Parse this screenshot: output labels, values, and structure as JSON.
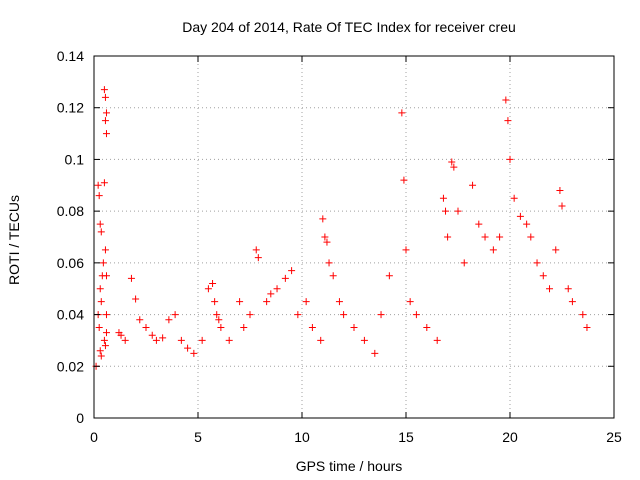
{
  "chart_data": {
    "type": "scatter",
    "title": "Day 204 of 2014, Rate Of TEC Index for receiver creu",
    "xlabel": "GPS time / hours",
    "ylabel": "ROTI / TECUs",
    "xlim": [
      0,
      25
    ],
    "ylim": [
      0,
      0.14
    ],
    "xticks": [
      0,
      5,
      10,
      15,
      20,
      25
    ],
    "yticks": [
      0,
      0.02,
      0.04,
      0.06,
      0.08,
      0.1,
      0.12,
      0.14
    ],
    "xtick_labels": [
      "0",
      "5",
      "10",
      "15",
      "20",
      "25"
    ],
    "ytick_labels": [
      "0",
      "0.02",
      "0.04",
      "0.06",
      "0.08",
      "0.1",
      "0.12",
      "0.14"
    ],
    "grid": true,
    "marker": "plus",
    "color": "#ff0000",
    "series": [
      {
        "name": "ROTI",
        "x": [
          0.1,
          0.2,
          0.25,
          0.3,
          0.35,
          0.4,
          0.45,
          0.5,
          0.55,
          0.6,
          0.2,
          0.25,
          0.55,
          0.6,
          0.5,
          0.55,
          0.6,
          0.3,
          0.35,
          0.6,
          0.5,
          0.55,
          0.6,
          0.3,
          0.35,
          1.2,
          1.3,
          1.5,
          1.8,
          2.0,
          2.2,
          2.5,
          2.8,
          3.0,
          3.3,
          3.6,
          3.9,
          4.2,
          4.5,
          4.8,
          5.2,
          5.5,
          5.7,
          5.8,
          5.9,
          6.0,
          6.1,
          6.5,
          7.0,
          7.2,
          7.5,
          7.8,
          7.9,
          8.3,
          8.5,
          8.8,
          9.2,
          9.5,
          9.8,
          10.2,
          10.5,
          10.9,
          11.0,
          11.1,
          11.2,
          11.3,
          11.5,
          11.8,
          12.0,
          12.5,
          13.0,
          13.5,
          13.8,
          14.2,
          14.8,
          14.9,
          15.0,
          15.2,
          15.5,
          16.0,
          16.5,
          16.8,
          16.9,
          17.0,
          17.2,
          17.3,
          17.5,
          17.8,
          18.2,
          18.5,
          18.8,
          19.2,
          19.5,
          19.8,
          19.9,
          20.0,
          20.2,
          20.5,
          20.8,
          21.0,
          21.3,
          21.6,
          21.9,
          22.2,
          22.4,
          22.5,
          22.8,
          23.0,
          23.5,
          23.7
        ],
        "y": [
          0.02,
          0.09,
          0.086,
          0.075,
          0.072,
          0.055,
          0.06,
          0.127,
          0.124,
          0.118,
          0.04,
          0.035,
          0.115,
          0.11,
          0.091,
          0.065,
          0.055,
          0.05,
          0.045,
          0.04,
          0.03,
          0.028,
          0.033,
          0.026,
          0.024,
          0.033,
          0.032,
          0.03,
          0.054,
          0.046,
          0.038,
          0.035,
          0.032,
          0.03,
          0.031,
          0.038,
          0.04,
          0.03,
          0.027,
          0.025,
          0.03,
          0.05,
          0.052,
          0.045,
          0.04,
          0.038,
          0.035,
          0.03,
          0.045,
          0.035,
          0.04,
          0.065,
          0.062,
          0.045,
          0.048,
          0.05,
          0.054,
          0.057,
          0.04,
          0.045,
          0.035,
          0.03,
          0.077,
          0.07,
          0.068,
          0.06,
          0.055,
          0.045,
          0.04,
          0.035,
          0.03,
          0.025,
          0.04,
          0.055,
          0.118,
          0.092,
          0.065,
          0.045,
          0.04,
          0.035,
          0.03,
          0.085,
          0.08,
          0.07,
          0.099,
          0.097,
          0.08,
          0.06,
          0.09,
          0.075,
          0.07,
          0.065,
          0.07,
          0.123,
          0.115,
          0.1,
          0.085,
          0.078,
          0.075,
          0.07,
          0.06,
          0.055,
          0.05,
          0.065,
          0.088,
          0.082,
          0.05,
          0.045,
          0.04,
          0.035
        ]
      }
    ]
  }
}
